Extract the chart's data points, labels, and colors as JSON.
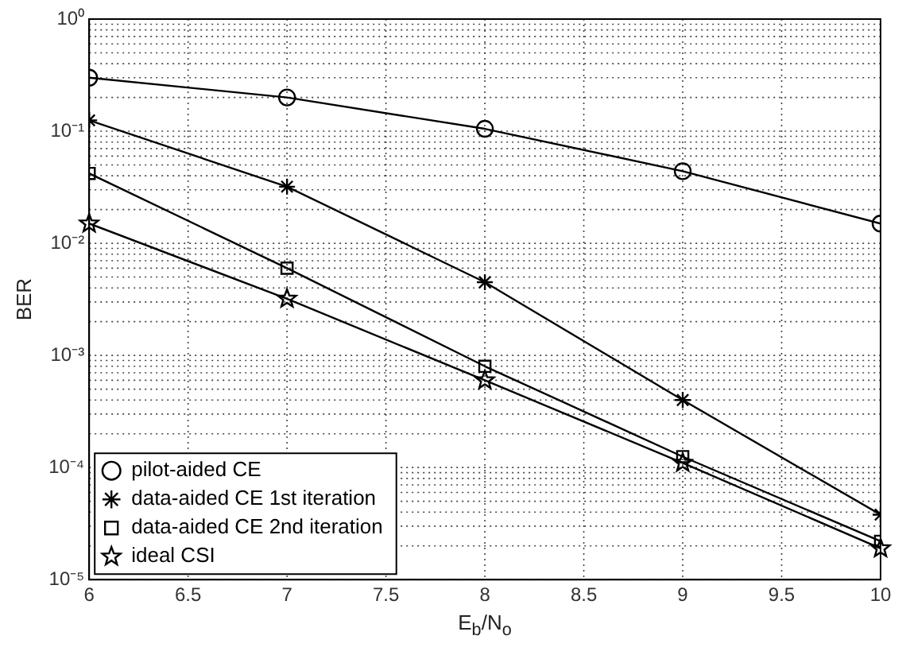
{
  "chart_data": {
    "type": "line",
    "xlabel": "E$_{b}$/N$_{o}$",
    "ylabel": "BER",
    "x": [
      6,
      7,
      8,
      9,
      10
    ],
    "series": [
      {
        "name": "pilot-aided CE",
        "color": "#000000",
        "marker": "circle",
        "values": [
          0.3,
          0.2,
          0.105,
          0.044,
          0.015
        ]
      },
      {
        "name": "data-aided CE 1st iteration",
        "color": "#000000",
        "marker": "cross",
        "values": [
          0.125,
          0.032,
          0.0045,
          0.0004,
          3.8e-05
        ]
      },
      {
        "name": "data-aided CE 2nd iteration",
        "color": "#000000",
        "marker": "square",
        "values": [
          0.042,
          0.006,
          0.0008,
          0.000125,
          2.2e-05
        ]
      },
      {
        "name": "ideal CSI",
        "color": "#000000",
        "marker": "star",
        "values": [
          0.015,
          0.0032,
          0.0006,
          0.00011,
          1.9e-05
        ]
      }
    ],
    "log": "y",
    "xlim": [
      6,
      10
    ],
    "xticks": [
      6,
      6.5,
      7,
      7.5,
      8,
      8.5,
      9,
      9.5,
      10
    ],
    "ylim": [
      1e-05,
      1
    ],
    "yticks": [
      {
        "value": 1e-05,
        "label": "10⁻⁵"
      },
      {
        "value": 0.0001,
        "label": "10⁻⁴"
      },
      {
        "value": 0.001,
        "label": "10⁻³"
      },
      {
        "value": 0.01,
        "label": "10⁻²"
      },
      {
        "value": 0.1,
        "label": "10⁻¹"
      },
      {
        "value": 1,
        "label": "10⁰"
      }
    ],
    "grid": true,
    "legend": "bottom left",
    "line_style": "solid"
  }
}
